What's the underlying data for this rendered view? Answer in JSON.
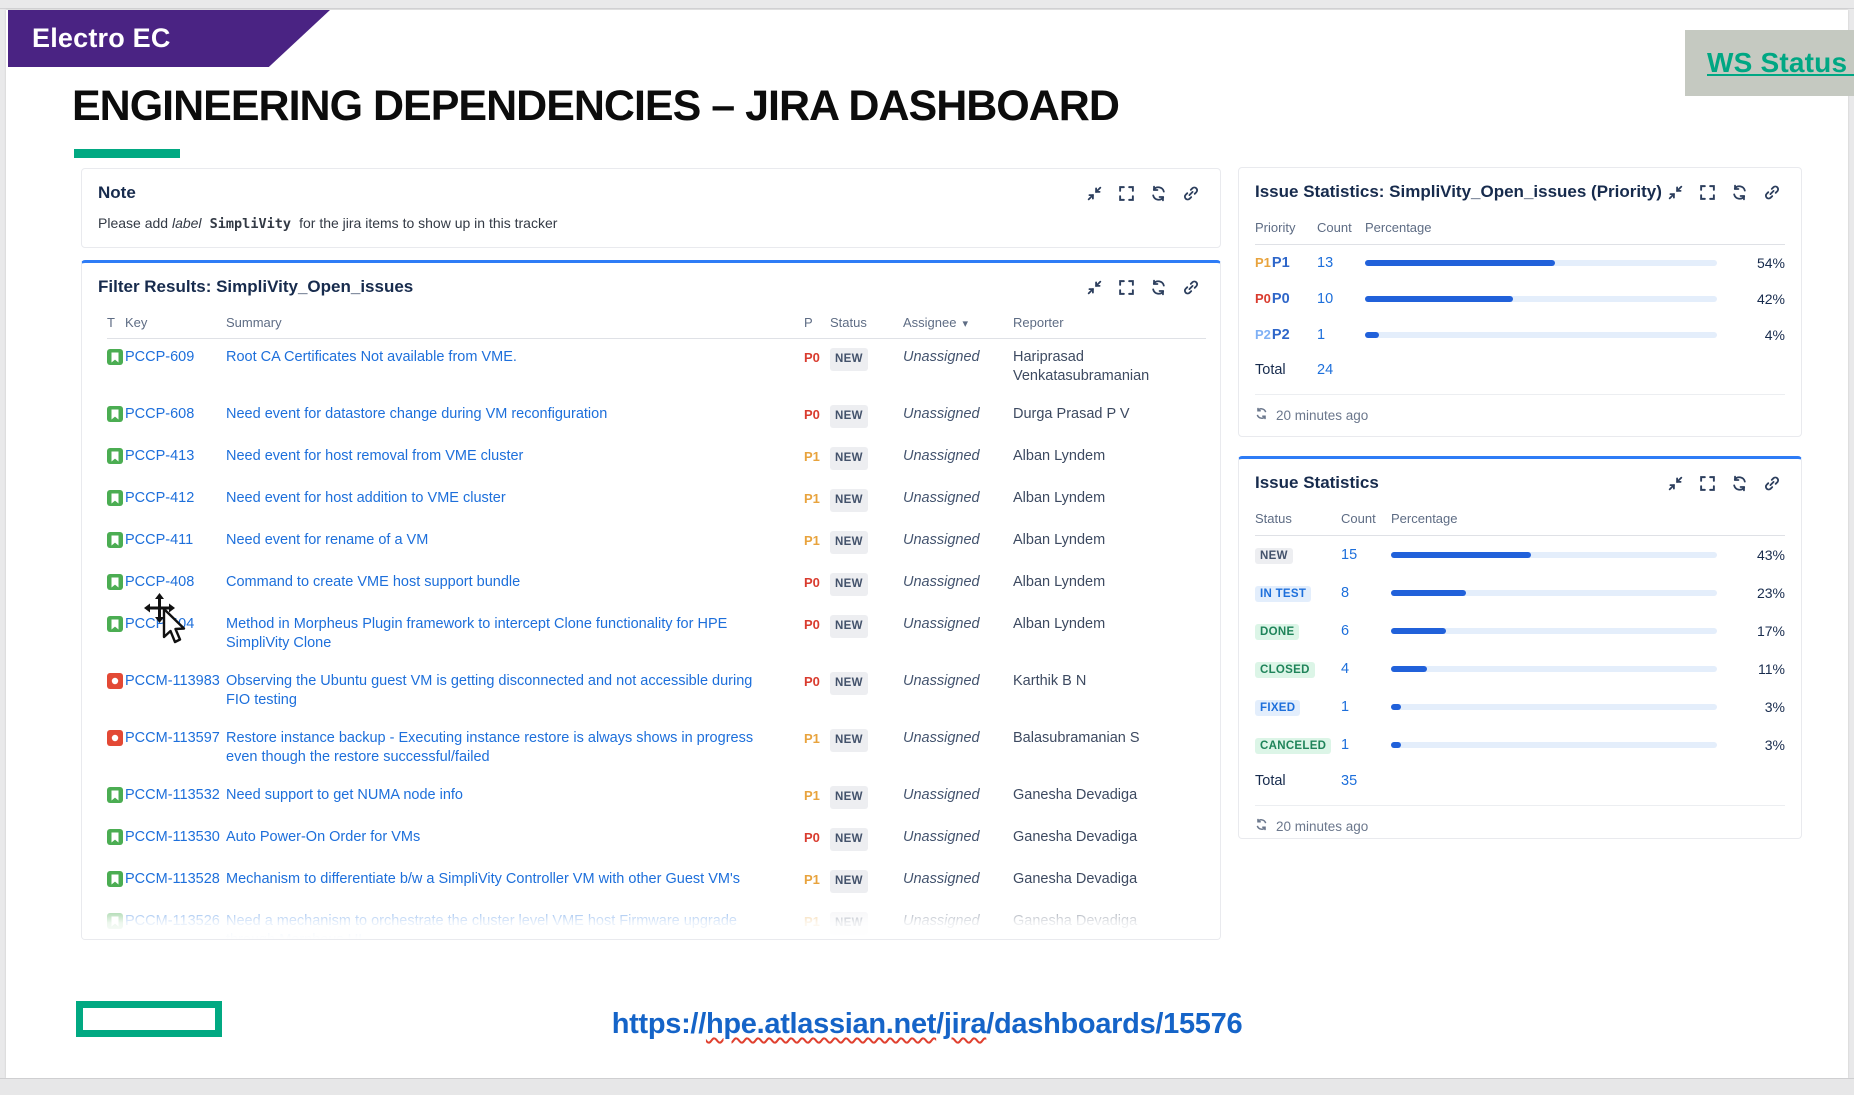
{
  "banner": {
    "label": "Electro EC"
  },
  "ws_link": {
    "label": "WS Status P"
  },
  "page": {
    "title": "ENGINEERING DEPENDENCIES – JIRA DASHBOARD"
  },
  "gadget_icons": [
    "minimize-icon",
    "maximize-icon",
    "refresh-icon",
    "link-icon"
  ],
  "note": {
    "title": "Note",
    "body_prefix": "Please add ",
    "body_label_word": "label",
    "body_code": " SimpliVity ",
    "body_suffix": "for the jira items to show up in this tracker"
  },
  "filter": {
    "title": "Filter Results: SimpliVity_Open_issues",
    "columns": [
      "T",
      "Key",
      "Summary",
      "P",
      "Status",
      "Assignee",
      "Reporter"
    ],
    "rows": [
      {
        "type": "story",
        "key": "PCCP-609",
        "summary": "Root CA Certificates Not available from VME.",
        "priority": "P0",
        "status": "NEW",
        "assignee": "Unassigned",
        "reporter": "Hariprasad Venkatasubramanian"
      },
      {
        "type": "story",
        "key": "PCCP-608",
        "summary": "Need event for datastore change during VM reconfiguration",
        "priority": "P0",
        "status": "NEW",
        "assignee": "Unassigned",
        "reporter": "Durga Prasad P V"
      },
      {
        "type": "story",
        "key": "PCCP-413",
        "summary": "Need event for host removal from VME cluster",
        "priority": "P1",
        "status": "NEW",
        "assignee": "Unassigned",
        "reporter": "Alban Lyndem"
      },
      {
        "type": "story",
        "key": "PCCP-412",
        "summary": "Need event for host addition to VME cluster",
        "priority": "P1",
        "status": "NEW",
        "assignee": "Unassigned",
        "reporter": "Alban Lyndem"
      },
      {
        "type": "story",
        "key": "PCCP-411",
        "summary": "Need event for rename of a VM",
        "priority": "P1",
        "status": "NEW",
        "assignee": "Unassigned",
        "reporter": "Alban Lyndem"
      },
      {
        "type": "story",
        "key": "PCCP-408",
        "summary": "Command to create VME host support bundle",
        "priority": "P0",
        "status": "NEW",
        "assignee": "Unassigned",
        "reporter": "Alban Lyndem"
      },
      {
        "type": "story",
        "key": "PCCP-404",
        "summary": "Method in Morpheus Plugin framework to intercept Clone functionality for HPE SimpliVity Clone",
        "priority": "P0",
        "status": "NEW",
        "assignee": "Unassigned",
        "reporter": "Alban Lyndem"
      },
      {
        "type": "bug",
        "key": "PCCM-113983",
        "summary": "Observing the Ubuntu guest VM is getting disconnected and not accessible during FIO testing",
        "priority": "P0",
        "status": "NEW",
        "assignee": "Unassigned",
        "reporter": "Karthik B N"
      },
      {
        "type": "bug",
        "key": "PCCM-113597",
        "summary": "Restore instance backup - Executing instance restore is always shows in progress even though the restore successful/failed",
        "priority": "P1",
        "status": "NEW",
        "assignee": "Unassigned",
        "reporter": "Balasubramanian S"
      },
      {
        "type": "story",
        "key": "PCCM-113532",
        "summary": "Need support to get NUMA node info",
        "priority": "P1",
        "status": "NEW",
        "assignee": "Unassigned",
        "reporter": "Ganesha Devadiga"
      },
      {
        "type": "story",
        "key": "PCCM-113530",
        "summary": "Auto Power-On Order for VMs",
        "priority": "P0",
        "status": "NEW",
        "assignee": "Unassigned",
        "reporter": "Ganesha Devadiga"
      },
      {
        "type": "story",
        "key": "PCCM-113528",
        "summary": "Mechanism to differentiate b/w a SimpliVity Controller VM with other Guest VM's",
        "priority": "P1",
        "status": "NEW",
        "assignee": "Unassigned",
        "reporter": "Ganesha Devadiga"
      },
      {
        "type": "story",
        "key": "PCCM-113526",
        "summary": "Need a mechanism to orchestrate the cluster level VME host Firmware upgrade through Morpheus UI",
        "priority": "P1",
        "status": "NEW",
        "assignee": "Unassigned",
        "reporter": "Ganesha Devadiga"
      }
    ],
    "partial_last_row": true
  },
  "priority_stats": {
    "title": "Issue Statistics: SimpliVity_Open_issues (Priority)",
    "columns": [
      "Priority",
      "Count",
      "Percentage"
    ],
    "rows": [
      {
        "label": "P1",
        "count": "13",
        "pct": 54,
        "pct_label": "54%"
      },
      {
        "label": "P0",
        "count": "10",
        "pct": 42,
        "pct_label": "42%"
      },
      {
        "label": "P2",
        "count": "1",
        "pct": 4,
        "pct_label": "4%"
      }
    ],
    "total_label": "Total",
    "total": "24",
    "updated": "20 minutes ago"
  },
  "status_stats": {
    "title": "Issue Statistics",
    "columns": [
      "Status",
      "Count",
      "Percentage"
    ],
    "rows": [
      {
        "label": "NEW",
        "variant": "neutral",
        "count": "15",
        "pct": 43,
        "pct_label": "43%"
      },
      {
        "label": "IN TEST",
        "variant": "info",
        "count": "8",
        "pct": 23,
        "pct_label": "23%"
      },
      {
        "label": "DONE",
        "variant": "success",
        "count": "6",
        "pct": 17,
        "pct_label": "17%"
      },
      {
        "label": "CLOSED",
        "variant": "success",
        "count": "4",
        "pct": 11,
        "pct_label": "11%"
      },
      {
        "label": "FIXED",
        "variant": "info",
        "count": "1",
        "pct": 3,
        "pct_label": "3%"
      },
      {
        "label": "CANCELED",
        "variant": "success",
        "count": "1",
        "pct": 3,
        "pct_label": "3%"
      }
    ],
    "total_label": "Total",
    "total": "35",
    "updated": "20 minutes ago"
  },
  "colors": {
    "brand_purple": "#4a2383",
    "brand_green": "#01a982",
    "link_blue": "#1d6fdb",
    "bar_fill": "#2161da",
    "p0_red": "#d93b2e",
    "p1_orange": "#e8a33d",
    "p2_blue": "#7fb0f5"
  },
  "footer": {
    "url_plain1": "https://",
    "url_sq1": "hpe.atlassian.net",
    "url_plain2": "/",
    "url_sq2": "jira",
    "url_plain3": "/dashboards/15576"
  }
}
